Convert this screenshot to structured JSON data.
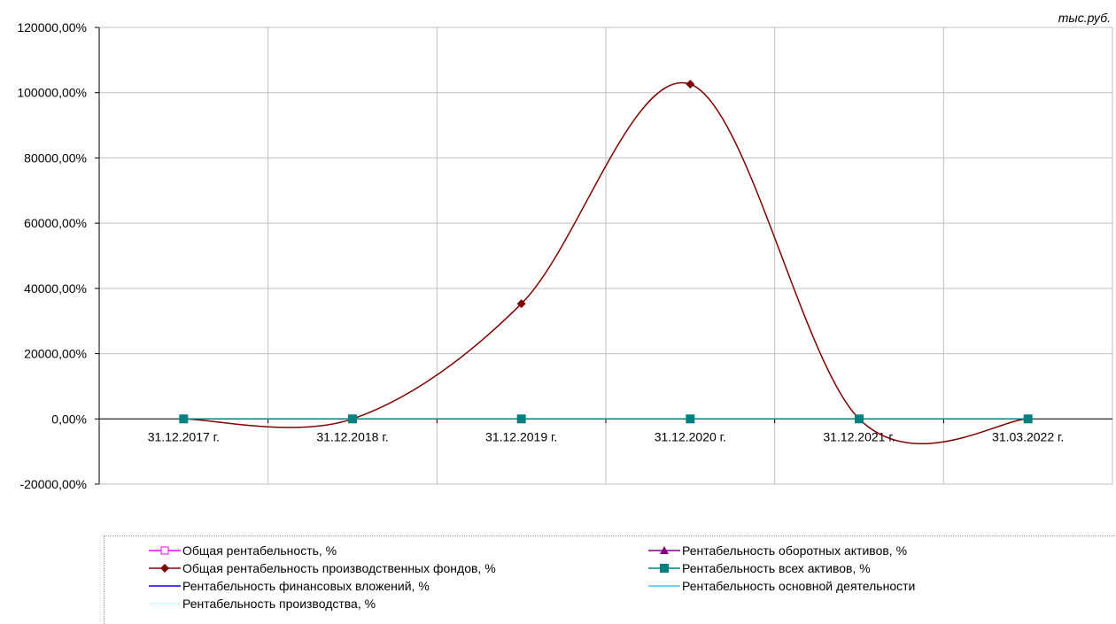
{
  "unit_label": "тыс.руб.",
  "chart_data": {
    "type": "line",
    "categories": [
      "31.12.2017 г.",
      "31.12.2018 г.",
      "31.12.2019 г.",
      "31.12.2020 г.",
      "31.12.2021 г.",
      "31.03.2022 г."
    ],
    "ylim": [
      -20000,
      120000
    ],
    "yticks": [
      -20000,
      0,
      20000,
      40000,
      60000,
      80000,
      100000,
      120000
    ],
    "ytick_labels": [
      "-20000,00%",
      "0,00%",
      "20000,00%",
      "40000,00%",
      "60000,00%",
      "80000,00%",
      "100000,00%",
      "120000,00%"
    ],
    "grid": true,
    "smooth": true,
    "legend_position": "bottom",
    "series": [
      {
        "name": "Общая рентабельность, %",
        "color": "#ff00ff",
        "marker": "square-open",
        "values": [
          0,
          0,
          0,
          0,
          0,
          0
        ]
      },
      {
        "name": "Рентабельность оборотных активов, %",
        "color": "#800080",
        "marker": "triangle",
        "values": [
          0,
          0,
          0,
          0,
          0,
          0
        ]
      },
      {
        "name": "Общая рентабельность производственных фондов, %",
        "color": "#800000",
        "marker": "diamond",
        "values": [
          0,
          0,
          35300,
          102600,
          0,
          0
        ]
      },
      {
        "name": "Рентабельность всех активов, %",
        "color": "#008080",
        "marker": "square",
        "values": [
          0,
          0,
          0,
          0,
          0,
          0
        ]
      },
      {
        "name": "Рентабельность финансовых вложений, %",
        "color": "#0000ff",
        "marker": "none",
        "values": [
          0,
          0,
          0,
          0,
          0,
          0
        ]
      },
      {
        "name": "Рентабельность основной деятельности",
        "color": "#33ccff",
        "marker": "none",
        "values": [
          0,
          0,
          0,
          0,
          0,
          0
        ]
      },
      {
        "name": "Рентабельность производства, %",
        "color": "#ccffff",
        "marker": "none",
        "values": [
          0,
          0,
          0,
          0,
          0,
          0
        ]
      }
    ]
  }
}
